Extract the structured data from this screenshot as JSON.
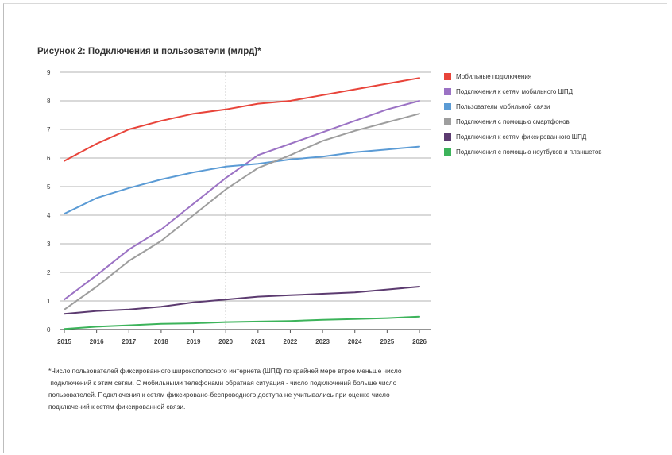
{
  "chart_data": {
    "type": "line",
    "title": "Рисунок 2: Подключения и пользователи (млрд)*",
    "xlabel": "",
    "ylabel": "",
    "categories": [
      "2015",
      "2016",
      "2017",
      "2018",
      "2019",
      "2020",
      "2021",
      "2022",
      "2023",
      "2024",
      "2025",
      "2026"
    ],
    "ylim": [
      0,
      9
    ],
    "yticks": [
      "0",
      "1",
      "2",
      "3",
      "4",
      "5",
      "6",
      "7",
      "8",
      "9"
    ],
    "grid": true,
    "reference_line_at": "2020",
    "legend_position": "right",
    "series": [
      {
        "name": "Мобильные подключения",
        "color": "#e8443a",
        "values": [
          5.9,
          6.5,
          7.0,
          7.3,
          7.55,
          7.7,
          7.9,
          8.0,
          8.2,
          8.4,
          8.6,
          8.8
        ]
      },
      {
        "name": "Подключения к сетям мобильного ШПД",
        "color": "#9b72c4",
        "values": [
          1.05,
          1.9,
          2.8,
          3.5,
          4.4,
          5.3,
          6.1,
          6.5,
          6.9,
          7.3,
          7.7,
          8.0
        ]
      },
      {
        "name": "Пользователи мобильной связи",
        "color": "#5b9bd5",
        "values": [
          4.05,
          4.6,
          4.95,
          5.25,
          5.5,
          5.7,
          5.8,
          5.95,
          6.05,
          6.2,
          6.3,
          6.4
        ]
      },
      {
        "name": "Подключения с помощью смартфонов",
        "color": "#9e9e9e",
        "values": [
          0.7,
          1.5,
          2.4,
          3.1,
          4.0,
          4.9,
          5.65,
          6.1,
          6.6,
          6.95,
          7.25,
          7.55
        ]
      },
      {
        "name": "Подключения к сетям фиксированного ШПД",
        "color": "#5c3b70",
        "values": [
          0.55,
          0.65,
          0.7,
          0.8,
          0.95,
          1.05,
          1.15,
          1.2,
          1.25,
          1.3,
          1.4,
          1.5
        ]
      },
      {
        "name": "Подключения с помощью ноутбуков и планшетов",
        "color": "#3cb35a",
        "values": [
          0.02,
          0.1,
          0.15,
          0.2,
          0.22,
          0.26,
          0.28,
          0.3,
          0.34,
          0.37,
          0.4,
          0.45
        ]
      }
    ]
  },
  "footnote": {
    "lines": [
      "*Число пользователей фиксированного широкополосного интернета (ШПД) по крайней мере втрое меньше число",
      " подключений к этим сетям. С мобильными телефонами обратная ситуация - число подключений больше число",
      "пользователей. Подключения к сетям фиксировано-беспроводного доступа не учитывались при оценке число",
      "подключений к сетям фиксированной связи."
    ]
  }
}
